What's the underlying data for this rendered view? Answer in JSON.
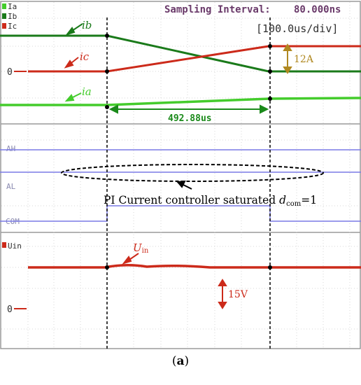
{
  "header": {
    "sampling_label": "Sampling Interval:",
    "sampling_value": "80.000ns",
    "timebase": "[100.0us/div]"
  },
  "channels": {
    "ia": "Ia",
    "ib": "Ib",
    "ic": "Ic",
    "ah": "AH",
    "al": "AL",
    "com": "COM",
    "uin": "Uin",
    "zero_current": "0",
    "zero_voltage": "0"
  },
  "annotations": {
    "ib_label": "ib",
    "ic_label": "ic",
    "ia_label": "ia",
    "step_12a": "12A",
    "duration": "492.88us",
    "pi_text_main": "PI Current controller saturated ",
    "pi_text_d": "d",
    "pi_text_sub": "com",
    "pi_text_eq": "=1",
    "uin_main": "U",
    "uin_sub": "in",
    "volt_15": "15V"
  },
  "caption": {
    "open": "(",
    "letter": "a",
    "close": ")"
  },
  "colors": {
    "grid": "#d7d7d7",
    "ib": "#1a7a1a",
    "ic": "#cc2a1a",
    "ia": "#44cc2c",
    "digital": "#7a7ae6",
    "uin": "#cc2a1a",
    "ann_12a": "#b08820",
    "duration": "#1a8a1a",
    "label_gray": "#8a8ab0",
    "border": "#9a9a9a"
  },
  "chart_data": {
    "type": "line",
    "x_unit": "us",
    "time_per_div": 100,
    "event_times_us": [
      0,
      492.88
    ],
    "current_step_A": 12,
    "voltage_scale_V": 15,
    "series": [
      {
        "name": "Ia",
        "description": "ramps slightly upward after t=0"
      },
      {
        "name": "Ib",
        "description": "decreases by 12A between t=0 and t=492.88us"
      },
      {
        "name": "Ic",
        "description": "increases by 12A between t=0 and t=492.88us"
      },
      {
        "name": "AH",
        "description": "constant high"
      },
      {
        "name": "AL",
        "description": "constant"
      },
      {
        "name": "COM",
        "description": "high between t=0 and t=492.88us"
      },
      {
        "name": "Uin",
        "description": "approximately constant"
      }
    ]
  }
}
